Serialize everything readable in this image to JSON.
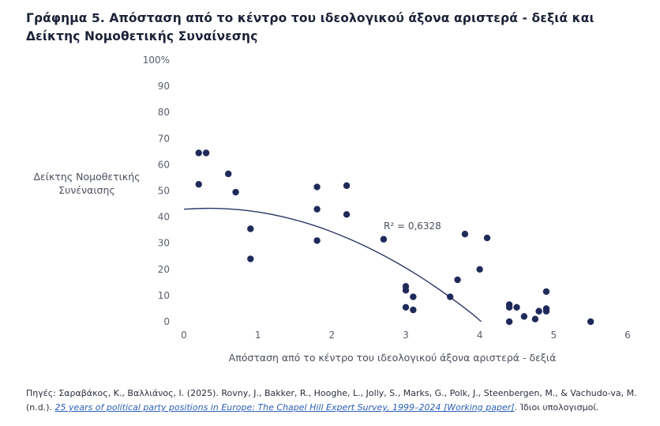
{
  "title": "Γράφημα 5. Απόσταση από το κέντρο του ιδεολογικού άξονα αριστερά - δεξιά και Δείκτης Νομοθετικής Συναίνεσης",
  "source": {
    "prefix": "Πηγές: Σαραβάκος, Κ., Βαλλιάνος, Ι. (2025).  Rovny, J., Bakker, R., Hooghe, L., Jolly, S., Marks, G., Polk, J., Steenbergen, M., & Vachudo-va, M. (n.d.). ",
    "link_text": "25 years of political party positions in Europe: The Chapel Hill Expert Survey, 1999–2024 [Working paper]",
    "suffix": ". Ίδιοι υπολογισμοί."
  },
  "colors": {
    "points": "#1f2a5a",
    "trend": "#2b3566",
    "axis_text": "#5a5f6e"
  },
  "chart_data": {
    "type": "scatter",
    "title": "",
    "xlabel": "Απόσταση από το κέντρο του ιδεολογικού άξονα αριστερά - δεξιά",
    "ylabel": "Δείκτης Νομοθετικής Συνέναισης",
    "xlim": [
      0,
      6
    ],
    "ylim": [
      0,
      100
    ],
    "x_ticks": [
      "0",
      "1",
      "2",
      "3",
      "4",
      "5",
      "6"
    ],
    "y_ticks": [
      "0",
      "10",
      "20",
      "30",
      "40",
      "50",
      "60",
      "70",
      "80",
      "90",
      "100%"
    ],
    "grid": false,
    "trendline": {
      "type": "polynomial-2",
      "r2_label": "R² = 0,6328"
    },
    "points": [
      {
        "x": 0.2,
        "y": 64.5
      },
      {
        "x": 0.3,
        "y": 64.5
      },
      {
        "x": 0.2,
        "y": 52.5
      },
      {
        "x": 0.6,
        "y": 56.5
      },
      {
        "x": 0.7,
        "y": 49.5
      },
      {
        "x": 0.9,
        "y": 35.5
      },
      {
        "x": 0.9,
        "y": 24
      },
      {
        "x": 1.8,
        "y": 51.5
      },
      {
        "x": 1.8,
        "y": 43
      },
      {
        "x": 1.8,
        "y": 31
      },
      {
        "x": 2.2,
        "y": 52
      },
      {
        "x": 2.2,
        "y": 41
      },
      {
        "x": 2.7,
        "y": 31.5
      },
      {
        "x": 3.0,
        "y": 13.5
      },
      {
        "x": 3.0,
        "y": 12
      },
      {
        "x": 3.0,
        "y": 5.5
      },
      {
        "x": 3.1,
        "y": 9.5
      },
      {
        "x": 3.1,
        "y": 4.5
      },
      {
        "x": 3.6,
        "y": 9.5
      },
      {
        "x": 3.7,
        "y": 16
      },
      {
        "x": 3.8,
        "y": 33.5
      },
      {
        "x": 4.0,
        "y": 20
      },
      {
        "x": 4.1,
        "y": 32
      },
      {
        "x": 4.4,
        "y": 6.5
      },
      {
        "x": 4.4,
        "y": 5.5
      },
      {
        "x": 4.4,
        "y": 0
      },
      {
        "x": 4.5,
        "y": 5.5
      },
      {
        "x": 4.6,
        "y": 2
      },
      {
        "x": 4.75,
        "y": 1
      },
      {
        "x": 4.8,
        "y": 4
      },
      {
        "x": 4.9,
        "y": 11.5
      },
      {
        "x": 4.9,
        "y": 5
      },
      {
        "x": 4.9,
        "y": 4
      },
      {
        "x": 5.5,
        "y": 0
      }
    ],
    "trend_curve": [
      {
        "x": 0,
        "y": 43
      },
      {
        "x": 0.3,
        "y": 43.4
      },
      {
        "x": 0.6,
        "y": 43.2
      },
      {
        "x": 0.9,
        "y": 42.4
      },
      {
        "x": 1.2,
        "y": 41
      },
      {
        "x": 1.5,
        "y": 39
      },
      {
        "x": 1.8,
        "y": 36.5
      },
      {
        "x": 2.1,
        "y": 33.3
      },
      {
        "x": 2.4,
        "y": 29.6
      },
      {
        "x": 2.7,
        "y": 25.4
      },
      {
        "x": 3.0,
        "y": 20.6
      },
      {
        "x": 3.3,
        "y": 15.3
      },
      {
        "x": 3.6,
        "y": 9.4
      },
      {
        "x": 3.9,
        "y": 3
      },
      {
        "x": 4.02,
        "y": 0
      }
    ]
  }
}
